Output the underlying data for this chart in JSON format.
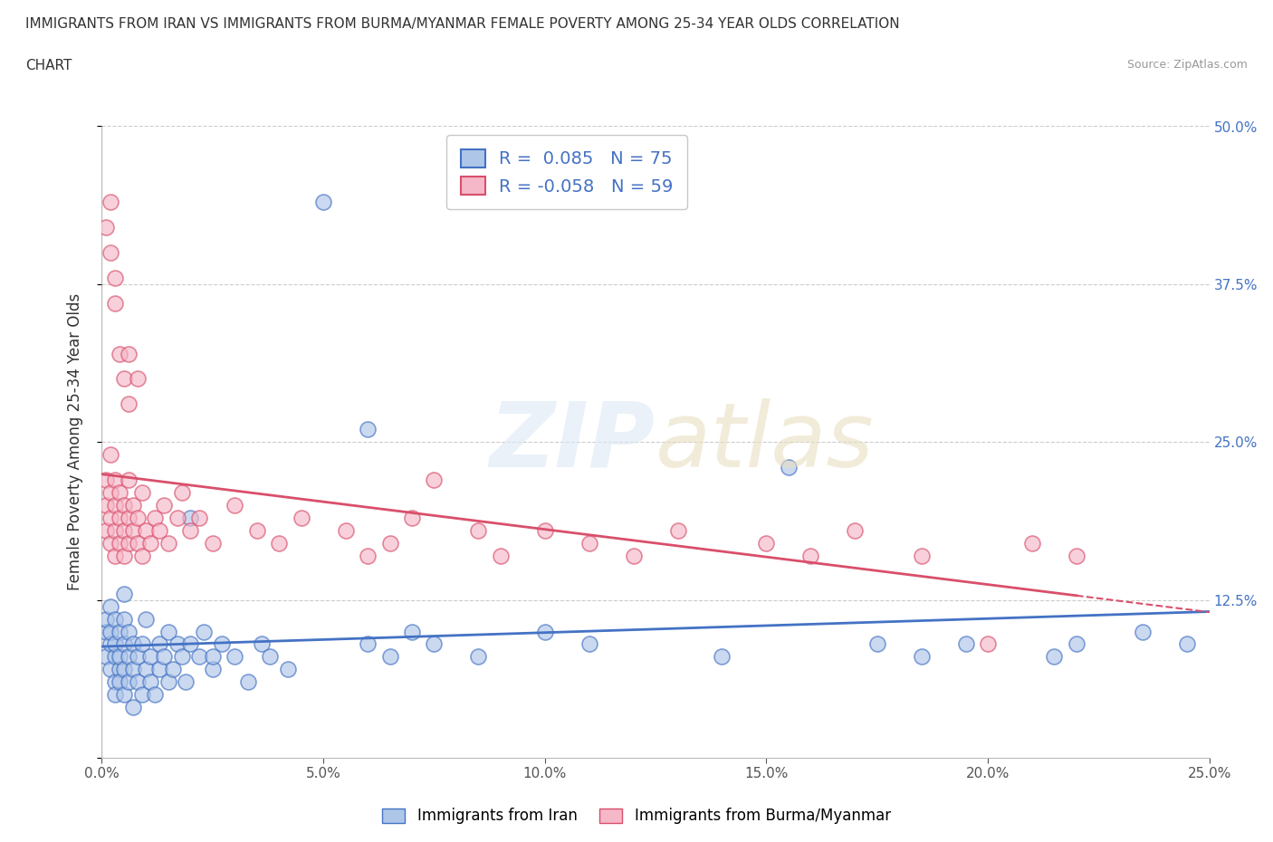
{
  "title_line1": "IMMIGRANTS FROM IRAN VS IMMIGRANTS FROM BURMA/MYANMAR FEMALE POVERTY AMONG 25-34 YEAR OLDS CORRELATION",
  "title_line2": "CHART",
  "source": "Source: ZipAtlas.com",
  "ylabel": "Female Poverty Among 25-34 Year Olds",
  "xlim": [
    0,
    0.25
  ],
  "ylim": [
    0,
    0.5
  ],
  "xticks": [
    0.0,
    0.05,
    0.1,
    0.15,
    0.2,
    0.25
  ],
  "xtick_labels": [
    "0.0%",
    "5.0%",
    "10.0%",
    "15.0%",
    "20.0%",
    "25.0%"
  ],
  "yticks": [
    0.0,
    0.125,
    0.25,
    0.375,
    0.5
  ],
  "ytick_labels": [
    "",
    "12.5%",
    "25.0%",
    "37.5%",
    "50.0%"
  ],
  "r_iran": 0.085,
  "n_iran": 75,
  "r_burma": -0.058,
  "n_burma": 59,
  "iran_color": "#aec6e8",
  "burma_color": "#f5b8c8",
  "iran_line_color": "#4472c4",
  "burma_line_color": "#d94f6b",
  "legend_label_iran": "Immigrants from Iran",
  "legend_label_burma": "Immigrants from Burma/Myanmar",
  "iran_x": [
    0.001,
    0.001,
    0.001,
    0.002,
    0.002,
    0.002,
    0.002,
    0.003,
    0.003,
    0.003,
    0.003,
    0.003,
    0.004,
    0.004,
    0.004,
    0.004,
    0.005,
    0.005,
    0.005,
    0.005,
    0.005,
    0.006,
    0.006,
    0.006,
    0.007,
    0.007,
    0.007,
    0.008,
    0.008,
    0.009,
    0.009,
    0.01,
    0.01,
    0.011,
    0.011,
    0.012,
    0.013,
    0.013,
    0.014,
    0.015,
    0.015,
    0.016,
    0.017,
    0.018,
    0.019,
    0.02,
    0.022,
    0.023,
    0.025,
    0.027,
    0.03,
    0.033,
    0.036,
    0.038,
    0.042,
    0.05,
    0.06,
    0.065,
    0.07,
    0.075,
    0.085,
    0.1,
    0.11,
    0.14,
    0.155,
    0.175,
    0.185,
    0.195,
    0.215,
    0.22,
    0.235,
    0.245,
    0.02,
    0.025,
    0.06
  ],
  "iran_y": [
    0.08,
    0.1,
    0.11,
    0.07,
    0.09,
    0.1,
    0.12,
    0.06,
    0.08,
    0.09,
    0.11,
    0.05,
    0.07,
    0.08,
    0.1,
    0.06,
    0.05,
    0.07,
    0.09,
    0.11,
    0.13,
    0.06,
    0.08,
    0.1,
    0.07,
    0.09,
    0.04,
    0.06,
    0.08,
    0.05,
    0.09,
    0.07,
    0.11,
    0.06,
    0.08,
    0.05,
    0.07,
    0.09,
    0.08,
    0.06,
    0.1,
    0.07,
    0.09,
    0.08,
    0.06,
    0.09,
    0.08,
    0.1,
    0.07,
    0.09,
    0.08,
    0.06,
    0.09,
    0.08,
    0.07,
    0.44,
    0.09,
    0.08,
    0.1,
    0.09,
    0.08,
    0.1,
    0.09,
    0.08,
    0.23,
    0.09,
    0.08,
    0.09,
    0.08,
    0.09,
    0.1,
    0.09,
    0.19,
    0.08,
    0.26
  ],
  "burma_x": [
    0.001,
    0.001,
    0.001,
    0.002,
    0.002,
    0.002,
    0.002,
    0.003,
    0.003,
    0.003,
    0.003,
    0.004,
    0.004,
    0.004,
    0.005,
    0.005,
    0.005,
    0.006,
    0.006,
    0.006,
    0.007,
    0.007,
    0.008,
    0.008,
    0.009,
    0.009,
    0.01,
    0.011,
    0.012,
    0.013,
    0.014,
    0.015,
    0.017,
    0.018,
    0.02,
    0.022,
    0.025,
    0.03,
    0.035,
    0.04,
    0.045,
    0.055,
    0.06,
    0.065,
    0.07,
    0.075,
    0.085,
    0.09,
    0.1,
    0.11,
    0.12,
    0.13,
    0.15,
    0.16,
    0.17,
    0.185,
    0.2,
    0.21,
    0.22
  ],
  "burma_y": [
    0.18,
    0.2,
    0.22,
    0.17,
    0.19,
    0.21,
    0.24,
    0.16,
    0.18,
    0.2,
    0.22,
    0.17,
    0.19,
    0.21,
    0.16,
    0.18,
    0.2,
    0.17,
    0.19,
    0.22,
    0.18,
    0.2,
    0.17,
    0.19,
    0.16,
    0.21,
    0.18,
    0.17,
    0.19,
    0.18,
    0.2,
    0.17,
    0.19,
    0.21,
    0.18,
    0.19,
    0.17,
    0.2,
    0.18,
    0.17,
    0.19,
    0.18,
    0.16,
    0.17,
    0.19,
    0.22,
    0.18,
    0.16,
    0.18,
    0.17,
    0.16,
    0.18,
    0.17,
    0.16,
    0.18,
    0.16,
    0.09,
    0.17,
    0.16
  ],
  "burma_outlier_x": [
    0.001,
    0.002,
    0.002,
    0.003,
    0.003,
    0.004,
    0.005,
    0.006,
    0.006,
    0.008
  ],
  "burma_outlier_y": [
    0.42,
    0.44,
    0.4,
    0.38,
    0.36,
    0.32,
    0.3,
    0.28,
    0.32,
    0.3
  ]
}
